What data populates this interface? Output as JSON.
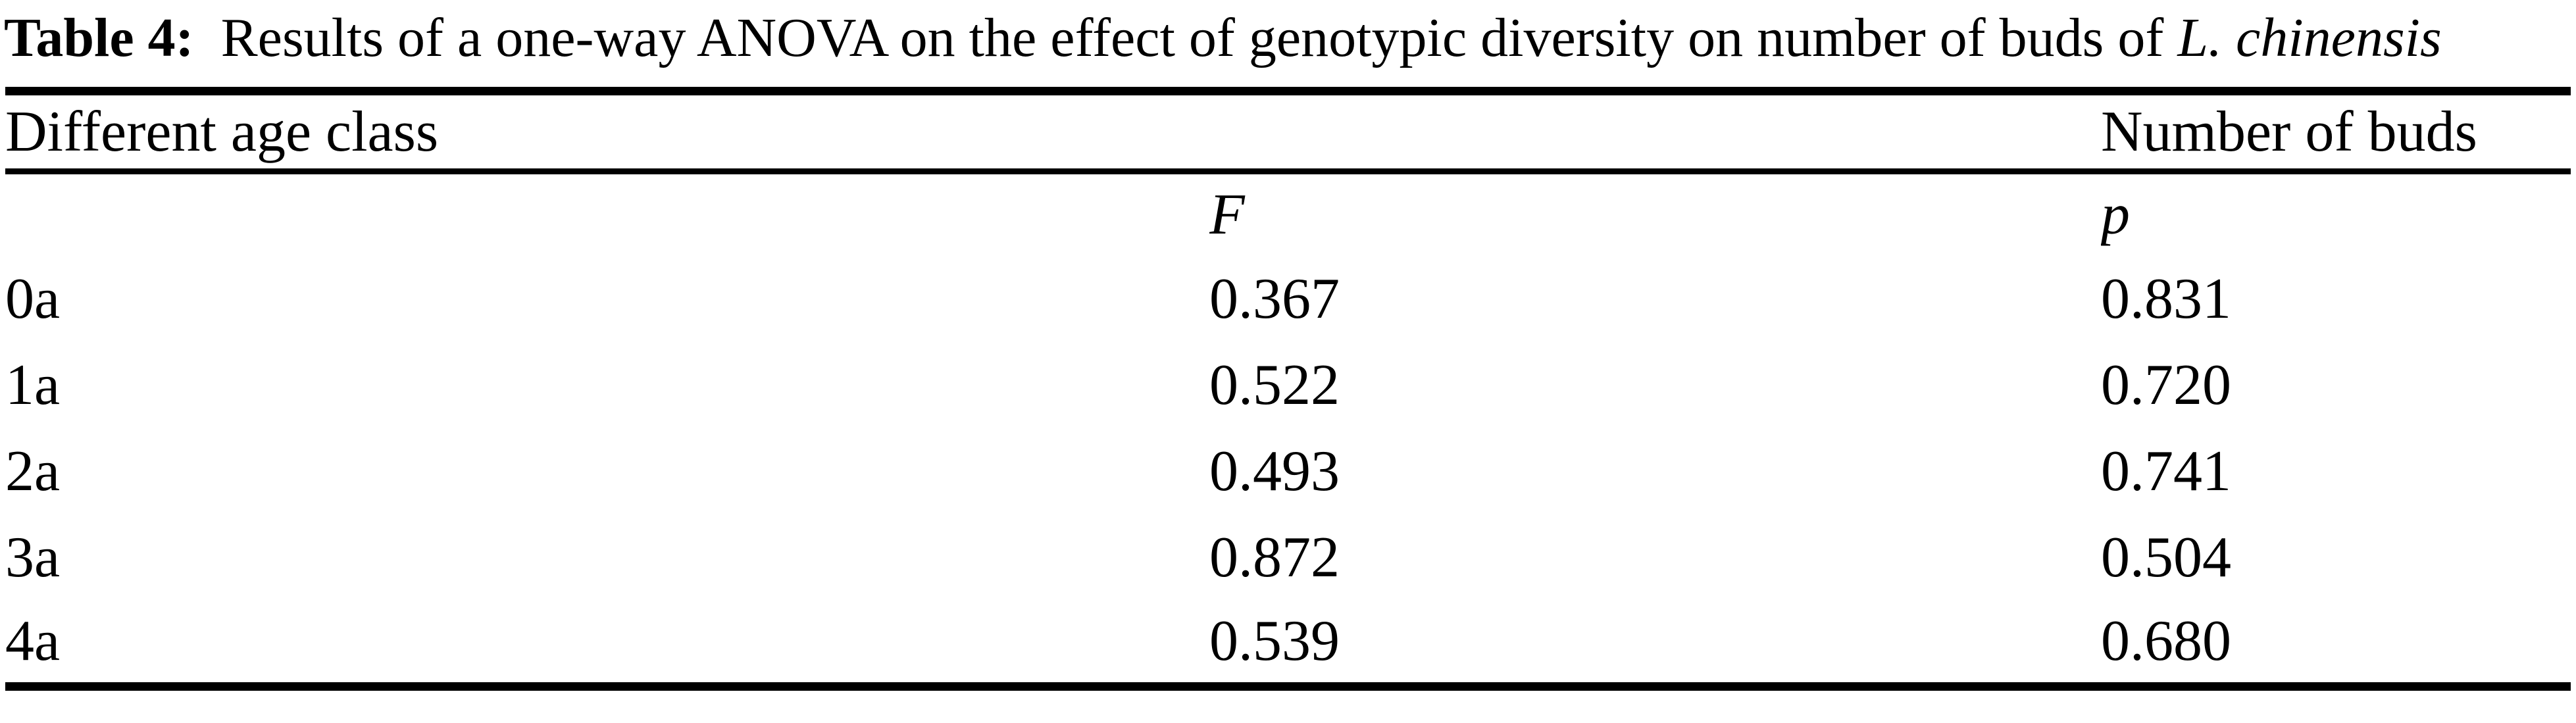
{
  "caption": {
    "label": "Table 4:",
    "text": "Results of a one-way ANOVA on the effect of genotypic diversity on number of buds of",
    "species": "L. chinensis"
  },
  "table": {
    "header": {
      "age_class": "Different age class",
      "measure": "Number of buds"
    },
    "subheader": {
      "f": "F",
      "p": "p"
    },
    "rows": [
      {
        "age": "0a",
        "f": "0.367",
        "p": "0.831"
      },
      {
        "age": "1a",
        "f": "0.522",
        "p": "0.720"
      },
      {
        "age": "2a",
        "f": "0.493",
        "p": "0.741"
      },
      {
        "age": "3a",
        "f": "0.872",
        "p": "0.504"
      },
      {
        "age": "4a",
        "f": "0.539",
        "p": "0.680"
      }
    ]
  },
  "colors": {
    "text": "#000000",
    "background": "#ffffff",
    "rule": "#000000"
  },
  "chart_data": {
    "type": "table",
    "title": "Table 4: Results of a one-way ANOVA on the effect of genotypic diversity on number of buds of L. chinensis",
    "columns": [
      "Different age class",
      "F",
      "p"
    ],
    "rows": [
      [
        "0a",
        0.367,
        0.831
      ],
      [
        "1a",
        0.522,
        0.72
      ],
      [
        "2a",
        0.493,
        0.741
      ],
      [
        "3a",
        0.872,
        0.504
      ],
      [
        "4a",
        0.539,
        0.68
      ]
    ]
  }
}
